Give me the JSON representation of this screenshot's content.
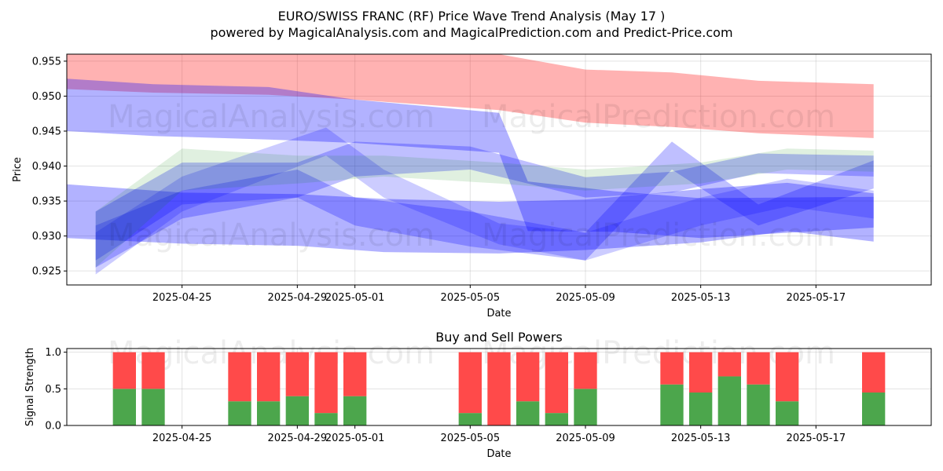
{
  "title_line1": "EURO/SWISS FRANC (RF) Price Wave Trend Analysis (May 17 )",
  "title_line2": "powered by MagicalAnalysis.com and MagicalPrediction.com and Predict-Price.com",
  "watermarks": [
    "MagicalAnalysis.com",
    "MagicalPrediction.com"
  ],
  "colors": {
    "red_band": "#ff0000",
    "blue_band": "#0000ff",
    "green_band": "#008000",
    "buy": "#4ca64c",
    "sell": "#ff4a4a"
  },
  "chart_data": [
    {
      "type": "area",
      "title": "",
      "xlabel": "Date",
      "ylabel": "Price",
      "xlim": [
        "2025-04-21",
        "2025-05-21"
      ],
      "ylim": [
        0.923,
        0.956
      ],
      "x_ticks": [
        "2025-04-25",
        "2025-04-29",
        "2025-05-01",
        "2025-05-05",
        "2025-05-09",
        "2025-05-13",
        "2025-05-17"
      ],
      "y_ticks": [
        "0.925",
        "0.930",
        "0.935",
        "0.940",
        "0.945",
        "0.950",
        "0.955"
      ],
      "grid": true,
      "series": [
        {
          "color": "red",
          "opacity": 0.3,
          "x": [
            "2025-04-21",
            "2025-04-24",
            "2025-04-28",
            "2025-05-01",
            "2025-05-06",
            "2025-05-09",
            "2025-05-12",
            "2025-05-15",
            "2025-05-19"
          ],
          "upper": [
            0.956,
            0.956,
            0.956,
            0.956,
            0.956,
            0.9538,
            0.9534,
            0.9522,
            0.9517
          ],
          "lower": [
            0.951,
            0.9505,
            0.9502,
            0.9495,
            0.948,
            0.9462,
            0.9456,
            0.9447,
            0.944
          ]
        },
        {
          "color": "blue",
          "opacity": 0.3,
          "x": [
            "2025-04-21",
            "2025-04-24",
            "2025-04-28",
            "2025-05-01",
            "2025-05-06",
            "2025-05-07",
            "2025-05-10",
            "2025-05-13",
            "2025-05-19"
          ],
          "upper": [
            0.9525,
            0.9517,
            0.9513,
            0.9495,
            0.9476,
            0.9378,
            0.9364,
            0.9354,
            0.9356
          ],
          "lower": [
            0.945,
            0.9443,
            0.9438,
            0.9433,
            0.9419,
            0.9307,
            0.9306,
            0.9297,
            0.9312
          ]
        },
        {
          "color": "blue",
          "opacity": 0.3,
          "x": [
            "2025-04-21",
            "2025-04-25",
            "2025-04-29",
            "2025-05-02",
            "2025-05-06",
            "2025-05-09",
            "2025-05-13",
            "2025-05-16",
            "2025-05-19"
          ],
          "upper": [
            0.9374,
            0.9362,
            0.936,
            0.9353,
            0.9349,
            0.9352,
            0.9367,
            0.9376,
            0.9361
          ],
          "lower": [
            0.9297,
            0.9289,
            0.9286,
            0.9277,
            0.9275,
            0.928,
            0.9291,
            0.9307,
            0.9292
          ]
        },
        {
          "color": "blue",
          "opacity": 0.25,
          "x": [
            "2025-04-22",
            "2025-04-25",
            "2025-04-29",
            "2025-05-01",
            "2025-05-05",
            "2025-05-09",
            "2025-05-12",
            "2025-05-15",
            "2025-05-19"
          ],
          "upper": [
            0.9335,
            0.9405,
            0.9405,
            0.9435,
            0.9428,
            0.9384,
            0.9392,
            0.9418,
            0.9415
          ],
          "lower": [
            0.9265,
            0.9345,
            0.9355,
            0.9385,
            0.9395,
            0.9355,
            0.9362,
            0.939,
            0.9385
          ]
        },
        {
          "color": "blue",
          "opacity": 0.25,
          "x": [
            "2025-04-22",
            "2025-04-25",
            "2025-04-29",
            "2025-05-01",
            "2025-05-05",
            "2025-05-09",
            "2025-05-12",
            "2025-05-15",
            "2025-05-19"
          ],
          "upper": [
            0.9315,
            0.9365,
            0.9395,
            0.9355,
            0.9335,
            0.9305,
            0.9435,
            0.9345,
            0.9408
          ],
          "lower": [
            0.9255,
            0.9325,
            0.9355,
            0.9315,
            0.9285,
            0.9265,
            0.9395,
            0.9315,
            0.9368
          ]
        },
        {
          "color": "blue",
          "opacity": 0.2,
          "x": [
            "2025-04-22",
            "2025-04-25",
            "2025-04-30",
            "2025-05-02",
            "2025-05-06",
            "2025-05-09",
            "2025-05-13",
            "2025-05-16",
            "2025-05-19"
          ],
          "upper": [
            0.9305,
            0.9385,
            0.9455,
            0.9395,
            0.9318,
            0.9305,
            0.9355,
            0.9382,
            0.9365
          ],
          "lower": [
            0.9245,
            0.9335,
            0.9415,
            0.9355,
            0.9288,
            0.9265,
            0.9315,
            0.9342,
            0.9325
          ]
        },
        {
          "color": "green",
          "opacity": 0.12,
          "x": [
            "2025-04-22",
            "2025-04-25",
            "2025-04-29",
            "2025-05-02",
            "2025-05-06",
            "2025-05-09",
            "2025-05-13",
            "2025-05-16",
            "2025-05-19"
          ],
          "upper": [
            0.9335,
            0.9425,
            0.9415,
            0.9415,
            0.9405,
            0.9395,
            0.9405,
            0.9425,
            0.9422
          ],
          "lower": [
            0.9255,
            0.9365,
            0.9375,
            0.9385,
            0.9375,
            0.9365,
            0.9375,
            0.9395,
            0.9392
          ]
        }
      ]
    },
    {
      "type": "bar",
      "title": "Buy and Sell Powers",
      "xlabel": "Date",
      "ylabel": "Signal Strength",
      "xlim": [
        "2025-04-21",
        "2025-05-21"
      ],
      "ylim": [
        0,
        1.05
      ],
      "x_ticks": [
        "2025-04-25",
        "2025-04-29",
        "2025-05-01",
        "2025-05-05",
        "2025-05-09",
        "2025-05-13",
        "2025-05-17"
      ],
      "y_ticks": [
        "0.0",
        "0.5",
        "1.0"
      ],
      "grid": true,
      "dates": [
        "2025-04-23",
        "2025-04-24",
        "2025-04-27",
        "2025-04-28",
        "2025-04-29",
        "2025-04-30",
        "2025-05-01",
        "2025-05-05",
        "2025-05-06",
        "2025-05-07",
        "2025-05-08",
        "2025-05-09",
        "2025-05-12",
        "2025-05-13",
        "2025-05-14",
        "2025-05-15",
        "2025-05-16",
        "2025-05-19"
      ],
      "series": [
        {
          "name": "buy",
          "values": [
            0.5,
            0.5,
            0.33,
            0.33,
            0.4,
            0.17,
            0.4,
            0.17,
            0.0,
            0.33,
            0.17,
            0.5,
            0.56,
            0.45,
            0.67,
            0.56,
            0.33,
            0.45
          ]
        },
        {
          "name": "sell",
          "values": [
            0.5,
            0.5,
            0.67,
            0.67,
            0.6,
            0.83,
            0.6,
            0.83,
            1.0,
            0.67,
            0.83,
            0.5,
            0.44,
            0.55,
            0.33,
            0.44,
            0.67,
            0.55
          ]
        }
      ]
    }
  ]
}
